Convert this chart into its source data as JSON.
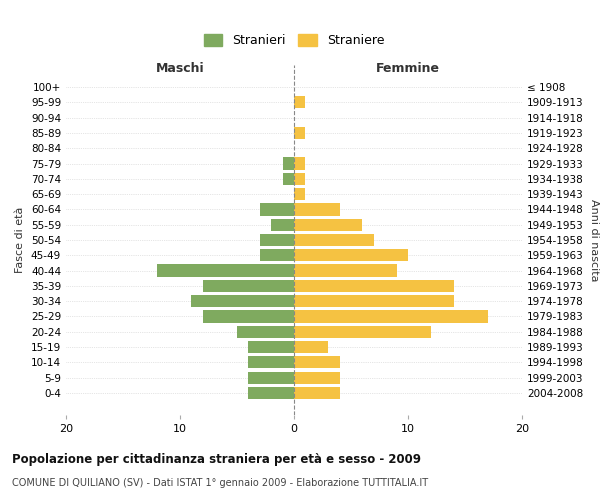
{
  "age_groups": [
    "0-4",
    "5-9",
    "10-14",
    "15-19",
    "20-24",
    "25-29",
    "30-34",
    "35-39",
    "40-44",
    "45-49",
    "50-54",
    "55-59",
    "60-64",
    "65-69",
    "70-74",
    "75-79",
    "80-84",
    "85-89",
    "90-94",
    "95-99",
    "100+"
  ],
  "birth_years": [
    "2004-2008",
    "1999-2003",
    "1994-1998",
    "1989-1993",
    "1984-1988",
    "1979-1983",
    "1974-1978",
    "1969-1973",
    "1964-1968",
    "1959-1963",
    "1954-1958",
    "1949-1953",
    "1944-1948",
    "1939-1943",
    "1934-1938",
    "1929-1933",
    "1924-1928",
    "1919-1923",
    "1914-1918",
    "1909-1913",
    "≤ 1908"
  ],
  "maschi": [
    4,
    4,
    4,
    4,
    5,
    8,
    9,
    8,
    12,
    3,
    3,
    2,
    3,
    0,
    1,
    1,
    0,
    0,
    0,
    0,
    0
  ],
  "femmine": [
    4,
    4,
    4,
    3,
    12,
    17,
    14,
    14,
    9,
    10,
    7,
    6,
    4,
    1,
    1,
    1,
    0,
    1,
    0,
    1,
    0
  ],
  "color_maschi": "#7faa5f",
  "color_femmine": "#f5c242",
  "background_color": "#ffffff",
  "grid_color": "#cccccc",
  "title": "Popolazione per cittadinanza straniera per età e sesso - 2009",
  "subtitle": "COMUNE DI QUILIANO (SV) - Dati ISTAT 1° gennaio 2009 - Elaborazione TUTTITALIA.IT",
  "xlabel_left": "Maschi",
  "xlabel_right": "Femmine",
  "ylabel_left": "Fasce di età",
  "ylabel_right": "Anni di nascita",
  "legend_maschi": "Stranieri",
  "legend_femmine": "Straniere",
  "xlim": 20,
  "bar_height": 0.8
}
